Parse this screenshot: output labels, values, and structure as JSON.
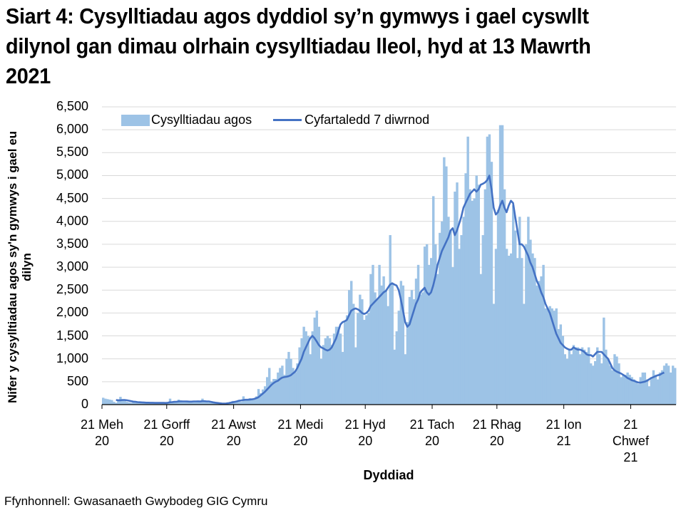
{
  "title": "Siart 4: Cysylltiadau agos dyddiol sy’n gymwys i gael cyswllt dilynol gan dimau olrhain cysylltiadau lleol, hyd at 13 Mawrth 2021",
  "source": "Ffynhonnell: Gwasanaeth Gwybodeg GIG Cymru",
  "colors": {
    "bars": "#9dc3e6",
    "line": "#4472c4",
    "grid": "#d9d9d9",
    "axis": "#000000"
  },
  "legend": {
    "bars_label": "Cysylltiadau agos",
    "line_label": "Cyfartaledd 7 diwrnod"
  },
  "axes": {
    "ylabel": "Nifer y cysylltiadau agos sy'n gymwys i gael eu dilyn",
    "xlabel": "Dyddiad",
    "yticks": [
      "0",
      "500",
      "1,000",
      "1,500",
      "2,000",
      "2,500",
      "3,000",
      "3,500",
      "4,000",
      "4,500",
      "5,000",
      "5,500",
      "6,000",
      "6,500"
    ],
    "xticks": [
      {
        "line1": "21 Meh",
        "line2": "20",
        "line3": ""
      },
      {
        "line1": "21 Gorff",
        "line2": "20",
        "line3": ""
      },
      {
        "line1": "21 Awst",
        "line2": "20",
        "line3": ""
      },
      {
        "line1": "21 Medi",
        "line2": "20",
        "line3": ""
      },
      {
        "line1": "21 Hyd",
        "line2": "20",
        "line3": ""
      },
      {
        "line1": "21 Tach",
        "line2": "20",
        "line3": ""
      },
      {
        "line1": "21 Rhag",
        "line2": "20",
        "line3": ""
      },
      {
        "line1": "21 Ion",
        "line2": "21",
        "line3": ""
      },
      {
        "line1": "21",
        "line2": "Chwef",
        "line3": "21"
      }
    ]
  },
  "chart_data": {
    "type": "bar+line",
    "title": "Siart 4: Cysylltiadau agos dyddiol sy’n gymwys i gael cyswllt dilynol gan dimau olrhain cysylltiadau lleol, hyd at 13 Mawrth 2021",
    "xlabel": "Dyddiad",
    "ylabel": "Nifer y cysylltiadau agos sy'n gymwys i gael eu dilyn",
    "ylim": [
      0,
      6500
    ],
    "ytick_step": 500,
    "grid": true,
    "legend_position": "top",
    "x_start": "2020-06-21",
    "x_end": "2021-03-12",
    "x_tick_days": [
      0,
      30,
      61,
      92,
      122,
      153,
      183,
      214,
      245
    ],
    "series": [
      {
        "name": "Cysylltiadau agos",
        "type": "bar",
        "values": [
          150,
          130,
          120,
          110,
          100,
          60,
          40,
          80,
          170,
          90,
          80,
          60,
          50,
          40,
          50,
          40,
          50,
          40,
          30,
          40,
          40,
          50,
          40,
          40,
          30,
          50,
          40,
          40,
          30,
          30,
          40,
          130,
          60,
          60,
          60,
          110,
          70,
          60,
          70,
          70,
          60,
          60,
          70,
          60,
          70,
          60,
          130,
          60,
          60,
          50,
          40,
          40,
          30,
          30,
          20,
          10,
          20,
          30,
          50,
          60,
          80,
          60,
          80,
          100,
          60,
          180,
          100,
          100,
          140,
          130,
          130,
          180,
          340,
          250,
          330,
          400,
          600,
          800,
          500,
          560,
          560,
          700,
          800,
          850,
          650,
          1000,
          1150,
          1000,
          800,
          700,
          900,
          1250,
          1450,
          1700,
          1600,
          1500,
          1100,
          1600,
          1900,
          2050,
          1700,
          1000,
          1300,
          1450,
          1500,
          1450,
          1300,
          1550,
          1700,
          1700,
          1550,
          1150,
          1800,
          1950,
          2500,
          2700,
          2200,
          1250,
          2000,
          2400,
          2300,
          1850,
          1950,
          2000,
          2850,
          3050,
          2450,
          2300,
          3050,
          2600,
          2800,
          2500,
          2150,
          3700,
          2650,
          1200,
          1600,
          2050,
          2700,
          2600,
          1100,
          1800,
          2350,
          2500,
          2300,
          2750,
          3050,
          2400,
          2450,
          3450,
          3500,
          3050,
          3200,
          4550,
          3500,
          2850,
          3750,
          4000,
          5400,
          5200,
          4100,
          3800,
          3000,
          4650,
          4850,
          3400,
          3700,
          4100,
          5050,
          5850,
          4700,
          4450,
          4500,
          5000,
          4800,
          2850,
          3700,
          4700,
          5850,
          5900,
          5300,
          2200,
          3400,
          4250,
          6100,
          6100,
          4700,
          3400,
          3250,
          3300,
          4350,
          3800,
          3200,
          4100,
          3200,
          2200,
          3500,
          4100,
          3600,
          3300,
          3200,
          2600,
          2700,
          2800,
          3050,
          2100,
          2100,
          2150,
          2100,
          2050,
          2100,
          1650,
          1750,
          1500,
          1100,
          1000,
          1200,
          1100,
          1300,
          1250,
          1250,
          1100,
          1250,
          1200,
          1150,
          1250,
          900,
          850,
          950,
          1250,
          1100,
          900,
          1900,
          1200,
          1000,
          850,
          750,
          1100,
          1050,
          900,
          600,
          650,
          650,
          700,
          650,
          600,
          550,
          500,
          450,
          600,
          700,
          700,
          550,
          400,
          600,
          750,
          650,
          550,
          700,
          750,
          850,
          900,
          850,
          700,
          850,
          800
        ]
      },
      {
        "name": "Cyfartaledd 7 diwrnod",
        "type": "line",
        "values": [
          null,
          null,
          null,
          null,
          null,
          null,
          100,
          95,
          95,
          100,
          100,
          95,
          85,
          75,
          65,
          60,
          55,
          52,
          48,
          45,
          42,
          42,
          40,
          40,
          38,
          38,
          38,
          38,
          38,
          36,
          40,
          52,
          55,
          60,
          62,
          68,
          72,
          70,
          70,
          68,
          65,
          65,
          70,
          70,
          72,
          68,
          75,
          75,
          70,
          70,
          60,
          50,
          42,
          35,
          30,
          25,
          22,
          25,
          30,
          40,
          50,
          60,
          70,
          85,
          90,
          100,
          105,
          105,
          110,
          115,
          125,
          140,
          160,
          200,
          240,
          280,
          330,
          380,
          430,
          470,
          500,
          520,
          560,
          590,
          600,
          610,
          620,
          640,
          680,
          720,
          800,
          900,
          1000,
          1150,
          1250,
          1350,
          1450,
          1500,
          1450,
          1380,
          1300,
          1250,
          1230,
          1200,
          1180,
          1200,
          1250,
          1350,
          1450,
          1600,
          1750,
          1800,
          1820,
          1850,
          1950,
          2050,
          2080,
          2100,
          2080,
          2050,
          2000,
          1980,
          2000,
          2050,
          2150,
          2200,
          2250,
          2300,
          2350,
          2400,
          2450,
          2480,
          2550,
          2620,
          2650,
          2620,
          2600,
          2500,
          2300,
          2050,
          1800,
          1700,
          1750,
          1900,
          2050,
          2200,
          2300,
          2450,
          2500,
          2550,
          2450,
          2400,
          2450,
          2600,
          2800,
          3050,
          3200,
          3350,
          3450,
          3550,
          3650,
          3800,
          3850,
          3700,
          3800,
          3950,
          4100,
          4300,
          4400,
          4500,
          4600,
          4650,
          4700,
          4650,
          4700,
          4800,
          4820,
          4850,
          4900,
          5000,
          4700,
          4300,
          4150,
          4200,
          4350,
          4450,
          4300,
          4200,
          4350,
          4450,
          4400,
          4100,
          3800,
          3500,
          3500,
          3450,
          3350,
          3250,
          3100,
          3000,
          2850,
          2700,
          2600,
          2450,
          2350,
          2200,
          2100,
          2000,
          1850,
          1700,
          1550,
          1450,
          1350,
          1300,
          1250,
          1220,
          1200,
          1200,
          1250,
          1220,
          1200,
          1200,
          1180,
          1150,
          1100,
          1080,
          1080,
          1050,
          1100,
          1150,
          1150,
          1150,
          1100,
          1050,
          1000,
          900,
          800,
          750,
          720,
          700,
          680,
          650,
          620,
          580,
          560,
          530,
          520,
          500,
          480,
          480,
          490,
          500,
          520,
          550,
          580,
          600,
          620,
          640,
          650,
          680,
          700
        ]
      }
    ]
  }
}
